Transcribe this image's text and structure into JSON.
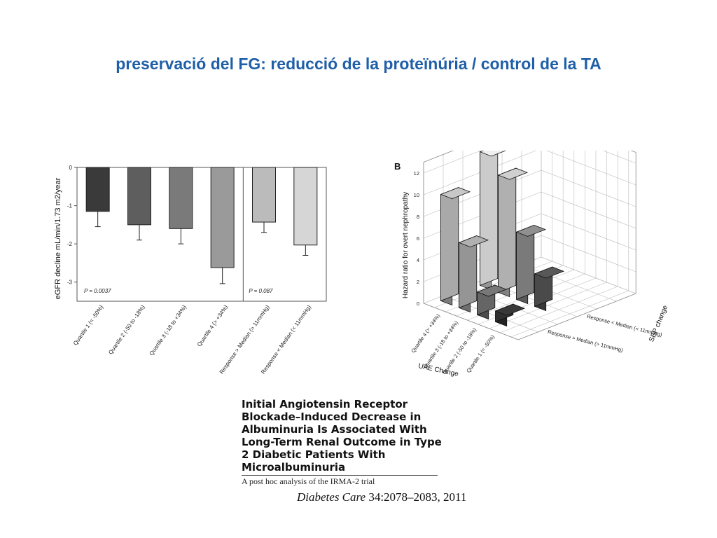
{
  "slide_title": "preservació del FG: reducció de la proteïnúria / control de la TA",
  "chart_data": [
    {
      "type": "bar",
      "ylabel": "eGFR decline mL/min/1.73 m2/year",
      "yticks": [
        "0",
        "-1",
        "-2",
        "-3"
      ],
      "ylim": [
        -3.5,
        0
      ],
      "categories": [
        "Quartile 1 (< -50%)",
        "Quartile 2 (-50 to -18%)",
        "Quartile 3 (-18 to +34%)",
        "Quartile 4 (> +34%)",
        "Response > Median (> 11mmHg)",
        "Response < Median (< 11mmHg)"
      ],
      "values": [
        -1.15,
        -1.5,
        -1.6,
        -2.62,
        -1.43,
        -2.03
      ],
      "errors": [
        0.4,
        0.4,
        0.4,
        0.42,
        0.27,
        0.27
      ],
      "bar_colors": [
        "#3a3a3a",
        "#5e5e5e",
        "#7a7a7a",
        "#9a9a9a",
        "#bbbbbb",
        "#d6d6d6"
      ],
      "annotations": [
        "P = 0.0037",
        "P = 0.087"
      ],
      "grid": false
    },
    {
      "type": "bar3d",
      "panel_label": "B",
      "zlabel": "Hazard ratio for overt nephropathy",
      "zticks": [
        "0",
        "2",
        "4",
        "6",
        "8",
        "10",
        "12"
      ],
      "zlim": [
        0,
        12
      ],
      "xlabel": "UAE Change",
      "ylabel": "SBP change",
      "x_categories": [
        "Quartile 4 (> +34%)",
        "Quartile 3 (-18 to +34%)",
        "Quartile 2 (-50 to -18%)",
        "Quartile 1 (< -50%)"
      ],
      "y_categories": [
        "Response > Median (> 11mmHg)",
        "Response < Median (< 11mmHg)"
      ],
      "values": {
        "Response < Median (< 11mmHg)": [
          12.3,
          10.8,
          6.2,
          3.0
        ],
        "Response > Median (> 11mmHg)": [
          9.8,
          6.0,
          2.1,
          1.0
        ]
      },
      "grid": true
    }
  ],
  "paper": {
    "title": "Initial Angiotensin Receptor Blockade–Induced Decrease in Albuminuria Is Associated With Long-Term Renal Outcome in Type 2 Diabetic Patients With Microalbuminuria",
    "subtitle": "A post hoc analysis of the IRMA-2 trial",
    "journal": "Diabetes Care",
    "citation": " 34:2078–2083, 2011"
  }
}
